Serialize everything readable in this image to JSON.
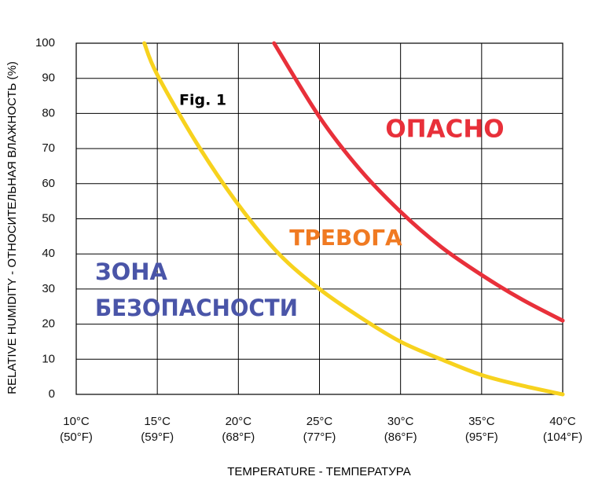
{
  "chart_data": {
    "type": "line",
    "xlabel": "TEMPERATURE - ТЕМПЕРАТУРА",
    "ylabel": "RELATIVE HUMIDITY - ОТНОСИТЕЛЬНАЯ ВЛАЖНОСТЬ (%)",
    "xlim": [
      10,
      40
    ],
    "ylim": [
      0,
      100
    ],
    "xticks": [
      {
        "value": 10,
        "label": "10°C (50°F)"
      },
      {
        "value": 15,
        "label": "15°C (59°F)"
      },
      {
        "value": 20,
        "label": "20°C (68°F)"
      },
      {
        "value": 25,
        "label": "25°C (77°F)"
      },
      {
        "value": 30,
        "label": "30°C (86°F)"
      },
      {
        "value": 35,
        "label": "35°C (95°F)"
      },
      {
        "value": 40,
        "label": "40°C (104°F)"
      }
    ],
    "yticks": [
      0,
      10,
      20,
      30,
      40,
      50,
      60,
      70,
      80,
      90,
      100
    ],
    "grid": true,
    "series": [
      {
        "color": "#f7d21e",
        "x": [
          14.2,
          15,
          17.5,
          20,
          22.5,
          25,
          27.5,
          30,
          32.5,
          35,
          37.5,
          40
        ],
        "values": [
          100,
          91,
          71,
          54,
          40,
          30,
          22,
          15,
          10,
          5.5,
          2.5,
          0
        ]
      },
      {
        "color": "#e8303a",
        "x": [
          22.2,
          25,
          27.5,
          30,
          32.5,
          35,
          37.5,
          40
        ],
        "values": [
          100,
          79,
          64,
          52,
          42,
          34,
          27,
          21
        ]
      }
    ],
    "annotations": [
      {
        "text": "Fig. 1",
        "color": "#000000"
      },
      {
        "text": "ОПАСНО",
        "color": "#e8303a"
      },
      {
        "text": "ТРЕВОГА",
        "color": "#f07a22"
      },
      {
        "text": "ЗОНА",
        "color": "#4a55a8"
      },
      {
        "text": "БЕЗОПАСНОСТИ",
        "color": "#4a55a8"
      }
    ]
  }
}
